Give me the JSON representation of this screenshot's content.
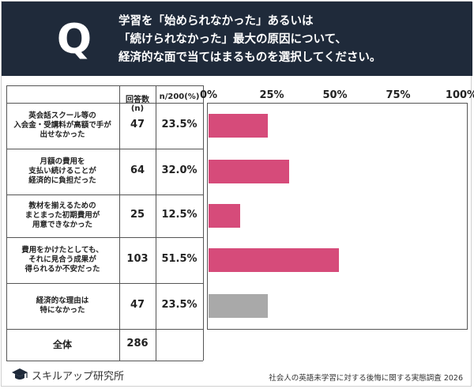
{
  "question": {
    "mark": "Q",
    "lines": [
      "学習を「始められなかった」あるいは",
      "「続けられなかった」最大の原因について、",
      "経済的な面で当てはまるものを選択してください。"
    ]
  },
  "table_header": {
    "count_col": "回答数(n)",
    "pct_col": "n/200(%)"
  },
  "chart_data": {
    "type": "bar",
    "orientation": "horizontal",
    "categories": [
      "英会話スクール等の\n入会金・受講料が高額で手が\n出せなかった",
      "月額の費用を\n支払い続けることが\n経済的に負担だった",
      "教材を揃えるための\nまとまった初期費用が\n用意できなかった",
      "費用をかけたとしても、\nそれに見合う成果が\n得られるか不安だった",
      "経済的な理由は\n特になかった"
    ],
    "counts": [
      "47",
      "64",
      "25",
      "103",
      "47"
    ],
    "values": [
      23.5,
      32.0,
      12.5,
      51.5,
      23.5
    ],
    "value_labels": [
      "23.5%",
      "32.0%",
      "12.5%",
      "51.5%",
      "23.5%"
    ],
    "bar_colors": [
      "#d64b7a",
      "#d64b7a",
      "#d64b7a",
      "#d64b7a",
      "#a9a9a9"
    ],
    "xlim": [
      0,
      100
    ],
    "ticks": [
      "0%",
      "25%",
      "50%",
      "75%",
      "100%"
    ],
    "tick_values": [
      0,
      25,
      50,
      75,
      100
    ],
    "total_label": "全体",
    "total_count": "286"
  },
  "footer": {
    "brand": "スキルアップ研究所",
    "source": "社会人の英語未学習に対する後悔に関する実態調査 2026"
  }
}
